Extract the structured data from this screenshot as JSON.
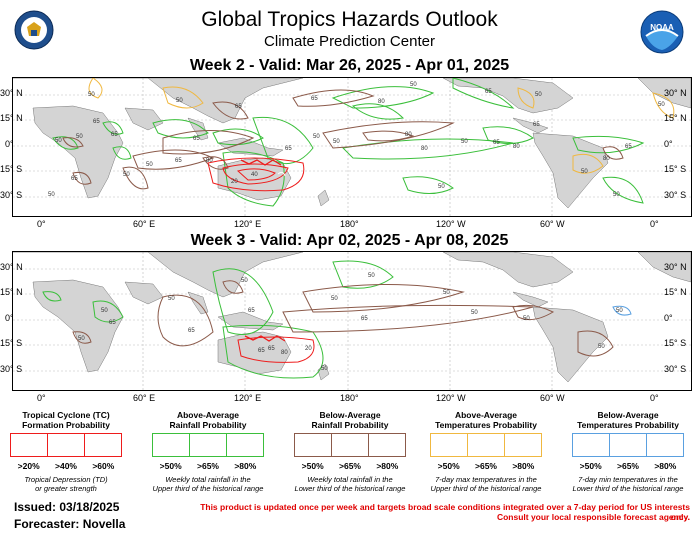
{
  "header": {
    "title": "Global Tropics Hazards Outlook",
    "subtitle": "Climate Prediction Center"
  },
  "colors": {
    "tc": "#ee1c1c",
    "above_rain": "#3bbf3b",
    "below_rain": "#8b5a4a",
    "above_temp": "#f0b840",
    "below_temp": "#5aa0e0",
    "land": "#d4d4d4"
  },
  "week2": {
    "title": "Week 2 - Valid: Mar 26, 2025 - Apr 01, 2025"
  },
  "week3": {
    "title": "Week 3 - Valid: Apr 02, 2025 - Apr 08, 2025"
  },
  "axes": {
    "lat_left": [
      "30° N",
      "15° N",
      "0°",
      "15° S",
      "30° S"
    ],
    "lat_right": [
      "30° N",
      "15° N",
      "0°",
      "15° S",
      "30° S"
    ],
    "lon": [
      "0°",
      "60° E",
      "120° E",
      "180°",
      "120° W",
      "60° W",
      "0°"
    ]
  },
  "contour_labels": {
    "w2": [
      "50",
      "65",
      "80",
      "50",
      "65",
      "50",
      "65",
      "80",
      "50",
      "40",
      "20",
      "65",
      "65",
      "80",
      "50",
      "80",
      "65",
      "50",
      "65",
      "80",
      "50",
      "50",
      "65",
      "80",
      "50",
      "65",
      "50",
      "50",
      "65",
      "50",
      "50",
      "65",
      "50",
      "65",
      "50",
      "50"
    ],
    "w3": [
      "50",
      "65",
      "65",
      "50",
      "50",
      "50",
      "65",
      "50",
      "50",
      "65",
      "80",
      "65",
      "50",
      "20",
      "50",
      "50",
      "65",
      "50",
      "50",
      "50"
    ]
  },
  "legend": [
    {
      "title": "Tropical Cyclone (TC)\nFormation Probability",
      "labels": [
        ">20%",
        ">40%",
        ">60%"
      ],
      "note": "Tropical Depression (TD)\nor greater strength",
      "color_key": "tc"
    },
    {
      "title": "Above-Average\nRainfall Probability",
      "labels": [
        ">50%",
        ">65%",
        ">80%"
      ],
      "note": "Weekly total rainfall in the\nUpper third of the historical range",
      "color_key": "above_rain"
    },
    {
      "title": "Below-Average\nRainfall Probability",
      "labels": [
        ">50%",
        ">65%",
        ">80%"
      ],
      "note": "Weekly total rainfall in the\nLower third of the historical range",
      "color_key": "below_rain"
    },
    {
      "title": "Above-Average\nTemperatures Probability",
      "labels": [
        ">50%",
        ">65%",
        ">80%"
      ],
      "note": "7-day max temperatures in the\nUpper third of the historical range",
      "color_key": "above_temp"
    },
    {
      "title": "Below-Average\nTemperatures Probability",
      "labels": [
        ">50%",
        ">65%",
        ">80%"
      ],
      "note": "7-day min temperatures in the\nLower third of the historical range",
      "color_key": "below_temp"
    }
  ],
  "footer": {
    "issued": "Issued: 03/18/2025",
    "forecaster": "Forecaster: Novella",
    "disclaimer1": "This product is updated once per week and targets broad scale conditions integrated over a 7-day period for US interests only.",
    "disclaimer2": "Consult your local responsible forecast agency."
  },
  "logos": {
    "left": "department-of-commerce-seal",
    "right": "noaa-logo"
  }
}
